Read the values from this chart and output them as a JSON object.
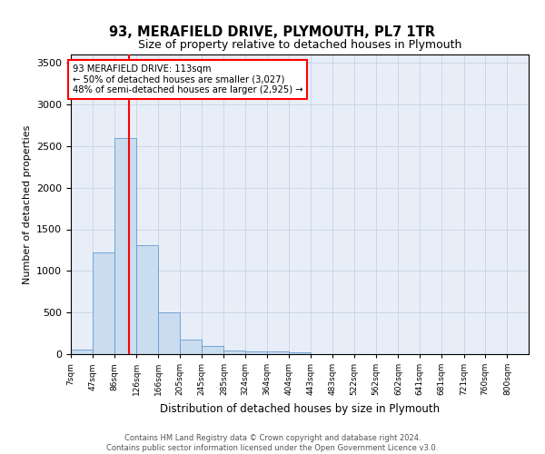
{
  "title": "93, MERAFIELD DRIVE, PLYMOUTH, PL7 1TR",
  "subtitle": "Size of property relative to detached houses in Plymouth",
  "xlabel": "Distribution of detached houses by size in Plymouth",
  "ylabel": "Number of detached properties",
  "bar_color": "#c9dcf0",
  "bar_edge_color": "#6699cc",
  "grid_color": "#ccd6e8",
  "bg_color": "#e8eef8",
  "vline_x": 113,
  "vline_color": "red",
  "annotation_line1": "93 MERAFIELD DRIVE: 113sqm",
  "annotation_line2": "← 50% of detached houses are smaller (3,027)",
  "annotation_line3": "48% of semi-detached houses are larger (2,925) →",
  "annotation_box_color": "white",
  "annotation_box_edge": "red",
  "bins_start": [
    7,
    47,
    86,
    126,
    166,
    205,
    245,
    285,
    324,
    364,
    404,
    443,
    483,
    522,
    562,
    602,
    641,
    681,
    721,
    760,
    800
  ],
  "bar_heights": [
    50,
    1220,
    2600,
    1310,
    500,
    175,
    100,
    48,
    32,
    30,
    20,
    5,
    2,
    0,
    0,
    0,
    0,
    0,
    0,
    0,
    0
  ],
  "ylim": [
    0,
    3600
  ],
  "yticks": [
    0,
    500,
    1000,
    1500,
    2000,
    2500,
    3000,
    3500
  ],
  "figwidth": 6.0,
  "figheight": 5.0,
  "dpi": 100,
  "footer_line1": "Contains HM Land Registry data © Crown copyright and database right 2024.",
  "footer_line2": "Contains public sector information licensed under the Open Government Licence v3.0."
}
